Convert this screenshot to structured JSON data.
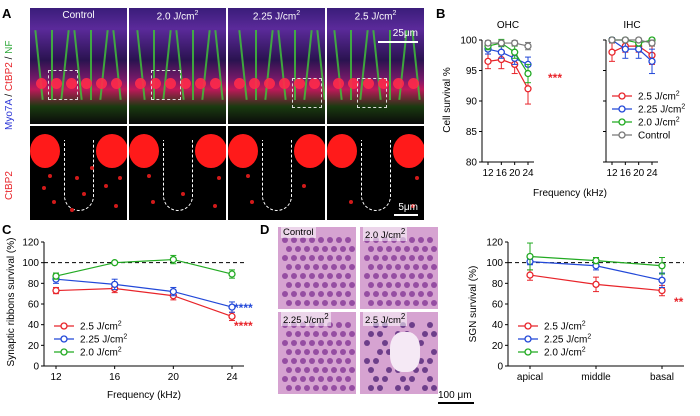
{
  "figure": {
    "panels": {
      "A": "A",
      "B": "B",
      "C": "C",
      "D": "D"
    },
    "panelA": {
      "columns": [
        "Control",
        "2.0 J/cm2",
        "2.25 J/cm2",
        "2.5 J/cm2"
      ],
      "stain_label_top_parts": [
        "Myo7A",
        " / ",
        "CtBP2",
        " / ",
        "NF"
      ],
      "stain_label_bottom": "CtBP2",
      "scalebar_top": "25μm",
      "scalebar_bottom": "5μm",
      "colors": {
        "myo7a": "#2b35d6",
        "ctbp2": "#e8242a",
        "nf": "#2fa83a"
      }
    },
    "panelD_histo": {
      "labels": [
        "Control",
        "2.0 J/cm2",
        "2.25 J/cm2",
        "2.5 J/cm2"
      ],
      "scalebar": "100 μm"
    }
  },
  "chart_data": [
    {
      "id": "B-OHC",
      "type": "line",
      "title": "OHC",
      "ylabel": "Cell survival %",
      "xlabel": "Frequency (kHz)",
      "categories": [
        "12",
        "16",
        "20",
        "24"
      ],
      "ylim": [
        80,
        100
      ],
      "yticks": [
        "80",
        "85",
        "90",
        "95",
        "100"
      ],
      "series": [
        {
          "name": "2.5 J/cm2",
          "color": "#e8242a",
          "values": [
            96.5,
            96.8,
            96.0,
            92.0
          ],
          "err": [
            1.2,
            1.5,
            1.5,
            2.5
          ]
        },
        {
          "name": "2.25 J/cm2",
          "color": "#2248d8",
          "values": [
            98.5,
            98.0,
            97.0,
            96.0
          ],
          "err": [
            0.8,
            1.0,
            1.0,
            1.2
          ]
        },
        {
          "name": "2.0 J/cm2",
          "color": "#22aa22",
          "values": [
            99.0,
            99.5,
            98.0,
            94.5
          ],
          "err": [
            0.6,
            0.6,
            1.0,
            1.5
          ]
        },
        {
          "name": "Control",
          "color": "#777777",
          "values": [
            99.5,
            99.5,
            99.5,
            99.0
          ],
          "err": [
            0.4,
            0.4,
            0.4,
            0.6
          ]
        }
      ],
      "annotation": "***",
      "annotation_color": "#e8242a"
    },
    {
      "id": "B-IHC",
      "type": "line",
      "title": "IHC",
      "categories": [
        "12",
        "16",
        "20",
        "24"
      ],
      "ylim": [
        80,
        100
      ],
      "series": [
        {
          "name": "2.5 J/cm2",
          "color": "#e8242a",
          "values": [
            98.0,
            99.0,
            99.0,
            97.5
          ],
          "err": [
            1.5,
            1.0,
            1.0,
            1.5
          ]
        },
        {
          "name": "2.25 J/cm2",
          "color": "#2248d8",
          "values": [
            100,
            98.5,
            98.5,
            96.5
          ],
          "err": [
            0.4,
            1.5,
            1.5,
            2.0
          ]
        },
        {
          "name": "2.0 J/cm2",
          "color": "#22aa22",
          "values": [
            100,
            100,
            99.5,
            100
          ],
          "err": [
            0.3,
            0.3,
            0.5,
            0.3
          ]
        },
        {
          "name": "Control",
          "color": "#777777",
          "values": [
            100,
            100,
            100,
            99.5
          ],
          "err": [
            0.3,
            0.3,
            0.3,
            0.5
          ]
        }
      ],
      "legend": [
        "2.5 J/cm2",
        "2.25 J/cm2",
        "2.0 J/cm2",
        "Control"
      ]
    },
    {
      "id": "C",
      "type": "line",
      "ylabel": "Synaptic ribbons survival (%)",
      "xlabel": "Frequency (kHz)",
      "categories": [
        "12",
        "16",
        "20",
        "24"
      ],
      "ylim": [
        0,
        120
      ],
      "yticks": [
        "0",
        "20",
        "40",
        "60",
        "80",
        "100",
        "120"
      ],
      "reference_line": 100,
      "series": [
        {
          "name": "2.5 J/cm2",
          "color": "#e8242a",
          "values": [
            73,
            75,
            68,
            48
          ],
          "err": [
            3,
            4,
            4,
            4
          ]
        },
        {
          "name": "2.25 J/cm2",
          "color": "#2248d8",
          "values": [
            84,
            79,
            72,
            57
          ],
          "err": [
            4,
            5,
            4,
            5
          ]
        },
        {
          "name": "2.0 J/cm2",
          "color": "#22aa22",
          "values": [
            87,
            100,
            103,
            89
          ],
          "err": [
            3,
            1,
            4,
            4
          ]
        }
      ],
      "annotations": [
        {
          "text": "****",
          "color": "#2248d8"
        },
        {
          "text": "****",
          "color": "#e8242a"
        }
      ]
    },
    {
      "id": "D-SGN",
      "type": "line",
      "ylabel": "SGN survival (%)",
      "categories": [
        "apical",
        "middle",
        "basal"
      ],
      "ylim": [
        0,
        120
      ],
      "yticks": [
        "0",
        "20",
        "40",
        "60",
        "80",
        "100",
        "120"
      ],
      "reference_line": 100,
      "series": [
        {
          "name": "2.5 J/cm2",
          "color": "#e8242a",
          "values": [
            88,
            79,
            73
          ],
          "err": [
            5,
            7,
            5
          ]
        },
        {
          "name": "2.25 J/cm2",
          "color": "#2248d8",
          "values": [
            101,
            97,
            83
          ],
          "err": [
            3,
            4,
            7
          ]
        },
        {
          "name": "2.0 J/cm2",
          "color": "#22aa22",
          "values": [
            106,
            102,
            97
          ],
          "err": [
            13,
            3,
            8
          ]
        }
      ],
      "annotation": "**",
      "annotation_color": "#e8242a"
    }
  ]
}
